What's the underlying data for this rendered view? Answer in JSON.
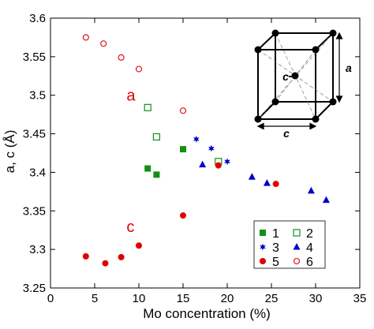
{
  "chart_data": {
    "type": "scatter",
    "xlabel": "Mo concentration (%)",
    "ylabel": "a, c (Å)",
    "xlim": [
      0,
      35
    ],
    "ylim": [
      3.25,
      3.6
    ],
    "xticks": [
      "0",
      "5",
      "10",
      "15",
      "20",
      "25",
      "30",
      "35"
    ],
    "yticks": [
      "3.25",
      "3.3",
      "3.35",
      "3.4",
      "3.45",
      "3.5",
      "3.55",
      "3.6"
    ],
    "grid": false,
    "legend_position": "bottom-right",
    "series": [
      {
        "name": "1",
        "marker": "square-filled",
        "color": "#138f13",
        "x": [
          11.0,
          12.0,
          15.0
        ],
        "y": [
          3.405,
          3.397,
          3.43
        ]
      },
      {
        "name": "2",
        "marker": "square-open",
        "color": "#138f13",
        "x": [
          11.0,
          12.0,
          19.0
        ],
        "y": [
          3.484,
          3.446,
          3.414
        ]
      },
      {
        "name": "3",
        "marker": "star",
        "color": "#0000cc",
        "x": [
          16.5,
          18.2,
          20.0
        ],
        "y": [
          3.443,
          3.431,
          3.414
        ]
      },
      {
        "name": "4",
        "marker": "triangle-filled",
        "color": "#0000cc",
        "x": [
          17.2,
          22.8,
          24.5,
          29.5,
          31.2
        ],
        "y": [
          3.41,
          3.394,
          3.386,
          3.376,
          3.364
        ]
      },
      {
        "name": "5",
        "marker": "circle-filled",
        "color": "#e00000",
        "x": [
          4.0,
          6.2,
          8.0,
          10.0,
          15.0,
          19.0,
          25.5
        ],
        "y": [
          3.291,
          3.282,
          3.29,
          3.305,
          3.344,
          3.409,
          3.385
        ]
      },
      {
        "name": "6",
        "marker": "circle-open",
        "color": "#e00000",
        "x": [
          4.0,
          6.0,
          8.0,
          10.0,
          15.0
        ],
        "y": [
          3.575,
          3.567,
          3.549,
          3.534,
          3.48
        ]
      }
    ],
    "annotations": [
      {
        "text": "a",
        "x": 8.6,
        "y": 3.5,
        "color": "#e00000"
      },
      {
        "text": "c",
        "x": 8.6,
        "y": 3.33,
        "color": "#e00000"
      }
    ]
  },
  "inset": {
    "label_a": "a",
    "label_c": "c",
    "label_c_marker": "c"
  }
}
